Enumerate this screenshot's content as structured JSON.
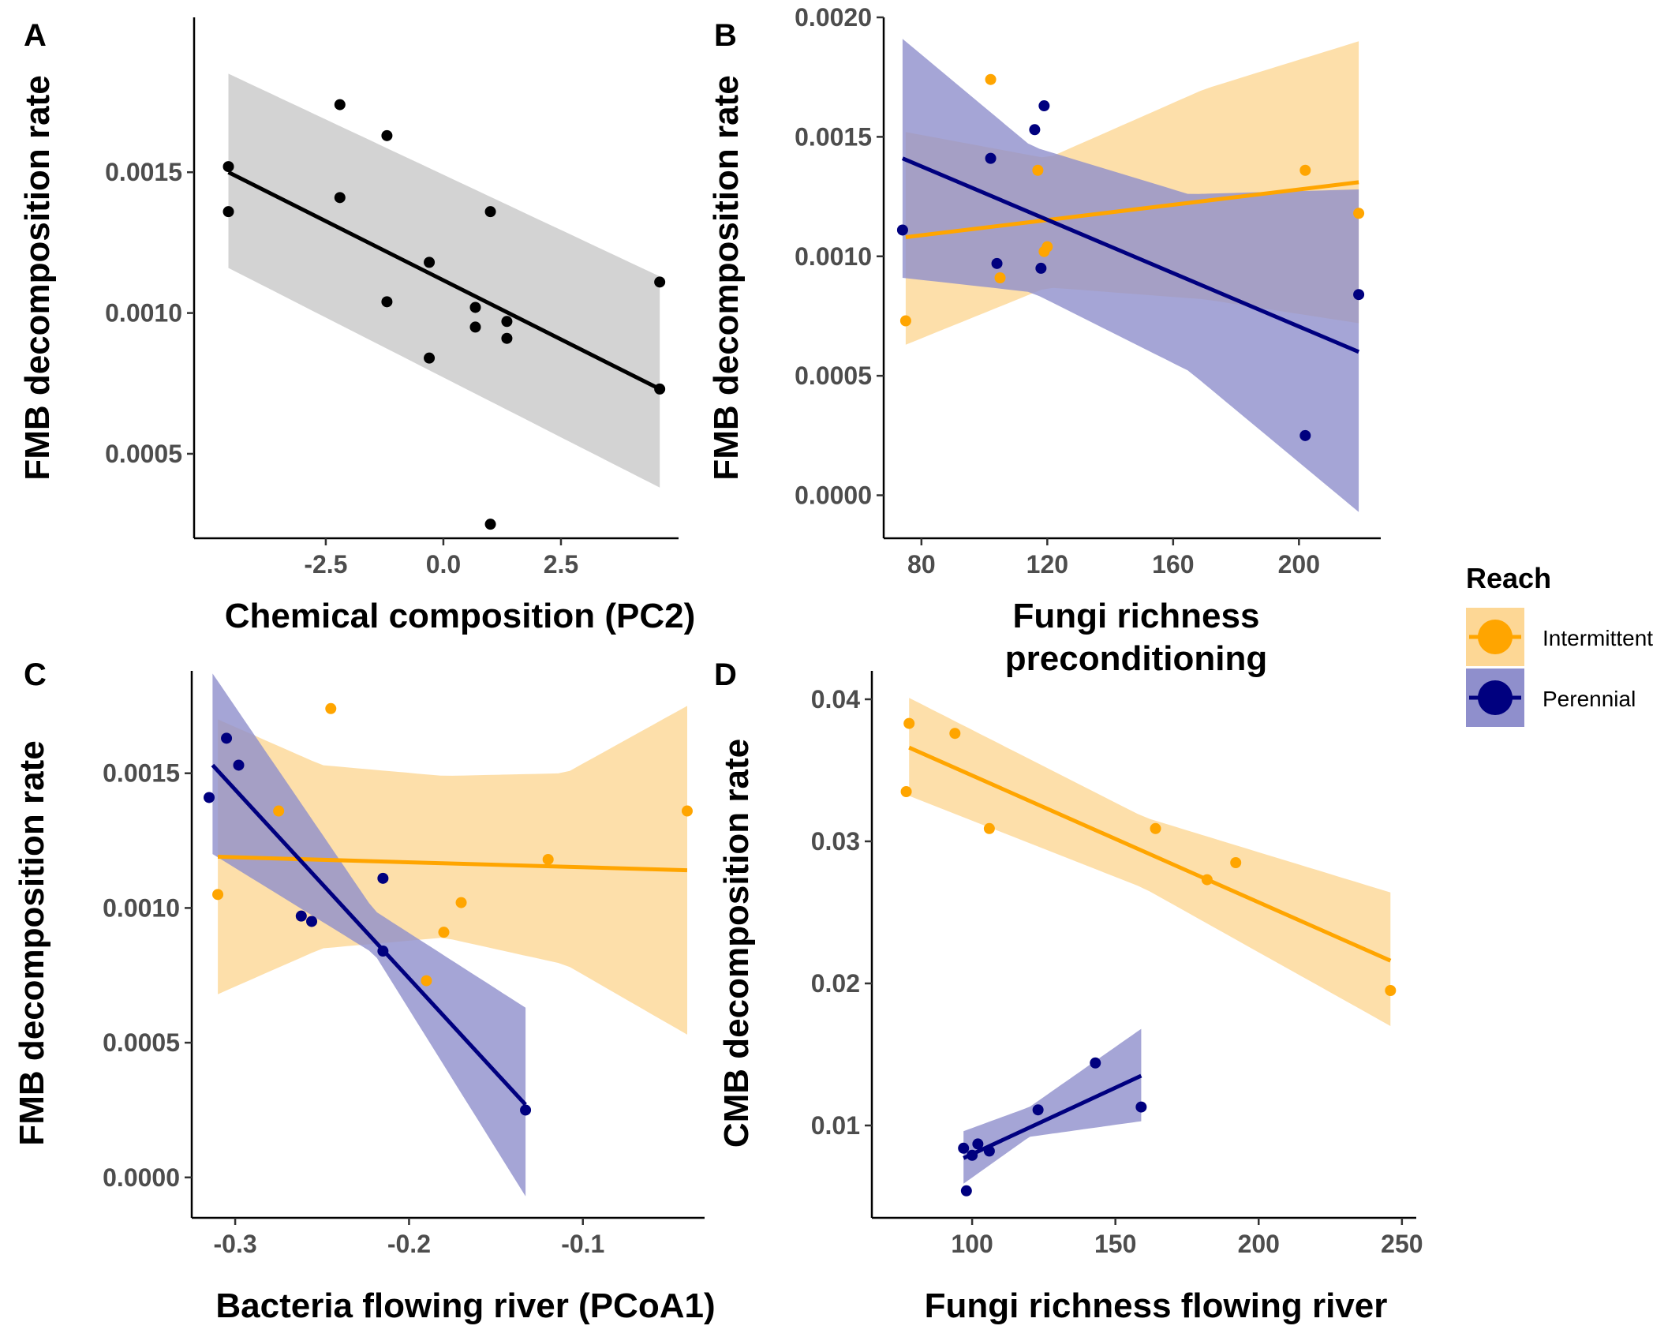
{
  "colors": {
    "black": "#000000",
    "gray_band": "#d3d3d3",
    "intermittent": "#ffa500",
    "intermittent_band": "#fdd795",
    "perennial": "#00007f",
    "perennial_band": "#8f8fcc"
  },
  "legend": {
    "title": "Reach",
    "items": [
      {
        "label": "Intermittent",
        "key": "intermittent"
      },
      {
        "label": "Perennial",
        "key": "perennial"
      }
    ]
  },
  "chart_data": [
    {
      "panel": "A",
      "type": "scatter",
      "xlabel": "Chemical composition (PC2)",
      "ylabel": "FMB decomposition rate",
      "xlim": [
        -5.3,
        5.0
      ],
      "ylim": [
        0.0002,
        0.00205
      ],
      "xticks": [
        -2.5,
        0.0,
        2.5
      ],
      "xtick_labels": [
        "-2.5",
        "0.0",
        "2.5"
      ],
      "yticks": [
        0.0005,
        0.001,
        0.0015
      ],
      "ytick_labels": [
        "0.0005",
        "0.0010",
        "0.0015"
      ],
      "grid": false,
      "series": [
        {
          "key": "black",
          "points": [
            [
              -4.57,
              0.00152
            ],
            [
              -4.57,
              0.00136
            ],
            [
              -2.2,
              0.00174
            ],
            [
              -2.2,
              0.00141
            ],
            [
              -1.2,
              0.00163
            ],
            [
              -1.2,
              0.00104
            ],
            [
              -0.3,
              0.00118
            ],
            [
              -0.3,
              0.00084
            ],
            [
              0.68,
              0.00102
            ],
            [
              0.68,
              0.00095
            ],
            [
              1.0,
              0.00136
            ],
            [
              1.0,
              0.00025
            ],
            [
              1.35,
              0.00097
            ],
            [
              1.35,
              0.00091
            ],
            [
              4.6,
              0.00111
            ],
            [
              4.6,
              0.00073
            ]
          ],
          "fit": {
            "x": [
              -4.57,
              4.6
            ],
            "y": [
              0.0015,
              0.00073
            ]
          },
          "band": {
            "x": [
              -4.57,
              4.6
            ],
            "lower": [
              0.00116,
              0.00038
            ],
            "upper": [
              0.00185,
              0.00113
            ]
          }
        }
      ]
    },
    {
      "panel": "B",
      "type": "scatter",
      "xlabel": "Fungi richness preconditioning",
      "xlabel_lines": [
        "Fungi richness",
        "preconditioning"
      ],
      "ylabel": "FMB decomposition rate",
      "xlim": [
        68,
        226
      ],
      "ylim": [
        -0.00018,
        0.002
      ],
      "xticks": [
        80,
        120,
        160,
        200
      ],
      "xtick_labels": [
        "80",
        "120",
        "160",
        "200"
      ],
      "yticks": [
        0.0,
        0.0005,
        0.001,
        0.0015,
        0.002
      ],
      "ytick_labels": [
        "0.0000",
        "0.0005",
        "0.0010",
        "0.0015",
        "0.0020"
      ],
      "grid": false,
      "series": [
        {
          "name": "Intermittent",
          "key": "intermittent",
          "points": [
            [
              75,
              0.00073
            ],
            [
              102,
              0.00174
            ],
            [
              105,
              0.00091
            ],
            [
              117,
              0.00136
            ],
            [
              119,
              0.00102
            ],
            [
              120,
              0.00104
            ],
            [
              202,
              0.00136
            ],
            [
              219,
              0.00118
            ]
          ],
          "fit": {
            "x": [
              75,
              219
            ],
            "y": [
              0.00108,
              0.00131
            ]
          },
          "band": {
            "x": [
              75,
              120,
              170,
              219
            ],
            "lower": [
              0.00063,
              0.00087,
              0.00082,
              0.00072
            ],
            "upper": [
              0.00152,
              0.00141,
              0.0017,
              0.0019
            ]
          }
        },
        {
          "name": "Perennial",
          "key": "perennial",
          "points": [
            [
              74,
              0.00111
            ],
            [
              102,
              0.00141
            ],
            [
              104,
              0.00097
            ],
            [
              116,
              0.00153
            ],
            [
              118,
              0.00095
            ],
            [
              119,
              0.00163
            ],
            [
              202,
              0.00025
            ],
            [
              219,
              0.00084
            ]
          ],
          "fit": {
            "x": [
              74,
              219
            ],
            "y": [
              0.00141,
              0.0006
            ]
          },
          "band": {
            "x": [
              74,
              115,
              165,
              219
            ],
            "lower": [
              0.00091,
              0.00085,
              0.00052,
              -7e-05
            ],
            "upper": [
              0.00191,
              0.00146,
              0.00126,
              0.00128
            ]
          }
        }
      ]
    },
    {
      "panel": "C",
      "type": "scatter",
      "xlabel": "Bacteria flowing river (PCoA1)",
      "ylabel": "FMB decomposition rate",
      "xlim": [
        -0.325,
        -0.03
      ],
      "ylim": [
        -0.00015,
        0.00188
      ],
      "xticks": [
        -0.3,
        -0.2,
        -0.1
      ],
      "xtick_labels": [
        "-0.3",
        "-0.2",
        "-0.1"
      ],
      "yticks": [
        0.0,
        0.0005,
        0.001,
        0.0015
      ],
      "ytick_labels": [
        "0.0000",
        "0.0005",
        "0.0010",
        "0.0015"
      ],
      "grid": false,
      "series": [
        {
          "name": "Intermittent",
          "key": "intermittent",
          "points": [
            [
              -0.31,
              0.00105
            ],
            [
              -0.275,
              0.00136
            ],
            [
              -0.245,
              0.00174
            ],
            [
              -0.19,
              0.00073
            ],
            [
              -0.18,
              0.00091
            ],
            [
              -0.17,
              0.00102
            ],
            [
              -0.12,
              0.00118
            ],
            [
              -0.04,
              0.00136
            ]
          ],
          "fit": {
            "x": [
              -0.31,
              -0.04
            ],
            "y": [
              0.00119,
              0.00114
            ]
          },
          "band": {
            "x": [
              -0.31,
              -0.25,
              -0.18,
              -0.11,
              -0.04
            ],
            "lower": [
              0.00068,
              0.00085,
              0.00089,
              0.00079,
              0.00053
            ],
            "upper": [
              0.0017,
              0.00153,
              0.00149,
              0.0015,
              0.00175
            ]
          }
        },
        {
          "name": "Perennial",
          "key": "perennial",
          "points": [
            [
              -0.315,
              0.00141
            ],
            [
              -0.305,
              0.00163
            ],
            [
              -0.298,
              0.00153
            ],
            [
              -0.262,
              0.00097
            ],
            [
              -0.256,
              0.00095
            ],
            [
              -0.215,
              0.00111
            ],
            [
              -0.215,
              0.00084
            ],
            [
              -0.133,
              0.00025
            ]
          ],
          "fit": {
            "x": [
              -0.313,
              -0.133
            ],
            "y": [
              0.00153,
              0.00027
            ]
          },
          "band": {
            "x": [
              -0.313,
              -0.22,
              -0.133
            ],
            "lower": [
              0.0012,
              0.00083,
              -7e-05
            ],
            "upper": [
              0.00187,
              0.00099,
              0.00063
            ]
          }
        }
      ]
    },
    {
      "panel": "D",
      "type": "scatter",
      "xlabel": "Fungi richness flowing river",
      "ylabel": "CMB decomposition rate",
      "xlim": [
        65,
        255
      ],
      "ylim": [
        0.0035,
        0.042
      ],
      "xticks": [
        100,
        150,
        200,
        250
      ],
      "xtick_labels": [
        "100",
        "150",
        "200",
        "250"
      ],
      "yticks": [
        0.01,
        0.02,
        0.03,
        0.04
      ],
      "ytick_labels": [
        "0.01",
        "0.02",
        "0.03",
        "0.04"
      ],
      "grid": false,
      "series": [
        {
          "name": "Intermittent",
          "key": "intermittent",
          "points": [
            [
              77,
              0.0335
            ],
            [
              78,
              0.0383
            ],
            [
              94,
              0.0376
            ],
            [
              106,
              0.0309
            ],
            [
              164,
              0.0309
            ],
            [
              182,
              0.0273
            ],
            [
              192,
              0.0285
            ],
            [
              246,
              0.0195
            ]
          ],
          "fit": {
            "x": [
              78,
              246
            ],
            "y": [
              0.0366,
              0.0216
            ]
          },
          "band": {
            "x": [
              78,
              160,
              246
            ],
            "lower": [
              0.0332,
              0.0267,
              0.017
            ],
            "upper": [
              0.0401,
              0.0317,
              0.0264
            ]
          }
        },
        {
          "name": "Perennial",
          "key": "perennial",
          "points": [
            [
              97,
              0.0084
            ],
            [
              98,
              0.0054
            ],
            [
              100,
              0.0079
            ],
            [
              102,
              0.0087
            ],
            [
              106,
              0.0082
            ],
            [
              123,
              0.0111
            ],
            [
              143,
              0.0144
            ],
            [
              159,
              0.0113
            ]
          ],
          "fit": {
            "x": [
              97,
              159
            ],
            "y": [
              0.0077,
              0.0135
            ]
          },
          "band": {
            "x": [
              97,
              120,
              159
            ],
            "lower": [
              0.0059,
              0.0092,
              0.0103
            ],
            "upper": [
              0.0096,
              0.0113,
              0.0168
            ]
          }
        }
      ]
    }
  ]
}
